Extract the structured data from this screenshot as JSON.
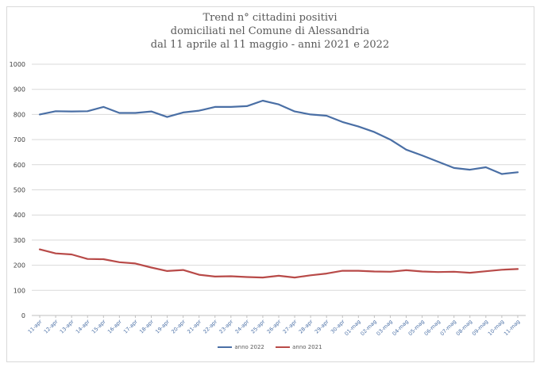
{
  "chart_data": {
    "type": "line",
    "title_lines": [
      "Trend n° cittadini positivi",
      "domiciliati nel Comune di Alessandria",
      "dal 11 aprile al 11 maggio - anni 2021 e 2022"
    ],
    "xlabel": "",
    "ylabel": "",
    "ylim": [
      0,
      1000
    ],
    "yticks": [
      0,
      100,
      200,
      300,
      400,
      500,
      600,
      700,
      800,
      900,
      1000
    ],
    "grid": true,
    "legend_position": "bottom",
    "categories": [
      "11-apr",
      "12-apr",
      "13-apr",
      "14-apr",
      "15-apr",
      "16-apr",
      "17-apr",
      "18-apr",
      "19-apr",
      "20-apr",
      "21-apr",
      "22-apr",
      "23-apr",
      "24-apr",
      "25-apr",
      "26-apr",
      "27-apr",
      "28-apr",
      "29-apr",
      "30-apr",
      "01-mag",
      "02-mag",
      "03-mag",
      "04-mag",
      "05-mag",
      "06-mag",
      "07-mag",
      "08-mag",
      "09-mag",
      "10-mag",
      "11-mag"
    ],
    "series": [
      {
        "name": "anno 2022",
        "color": "#4a6fa5",
        "values": [
          800,
          813,
          812,
          813,
          830,
          806,
          806,
          812,
          790,
          808,
          815,
          830,
          830,
          833,
          855,
          840,
          812,
          800,
          795,
          770,
          752,
          730,
          700,
          660,
          637,
          612,
          587,
          580,
          590,
          563,
          570
        ]
      },
      {
        "name": "anno 2021",
        "color": "#b84a48",
        "values": [
          263,
          247,
          243,
          225,
          224,
          212,
          207,
          191,
          177,
          181,
          162,
          155,
          156,
          153,
          151,
          158,
          151,
          160,
          167,
          178,
          178,
          175,
          174,
          180,
          175,
          173,
          174,
          170,
          176,
          182,
          185
        ]
      }
    ]
  }
}
